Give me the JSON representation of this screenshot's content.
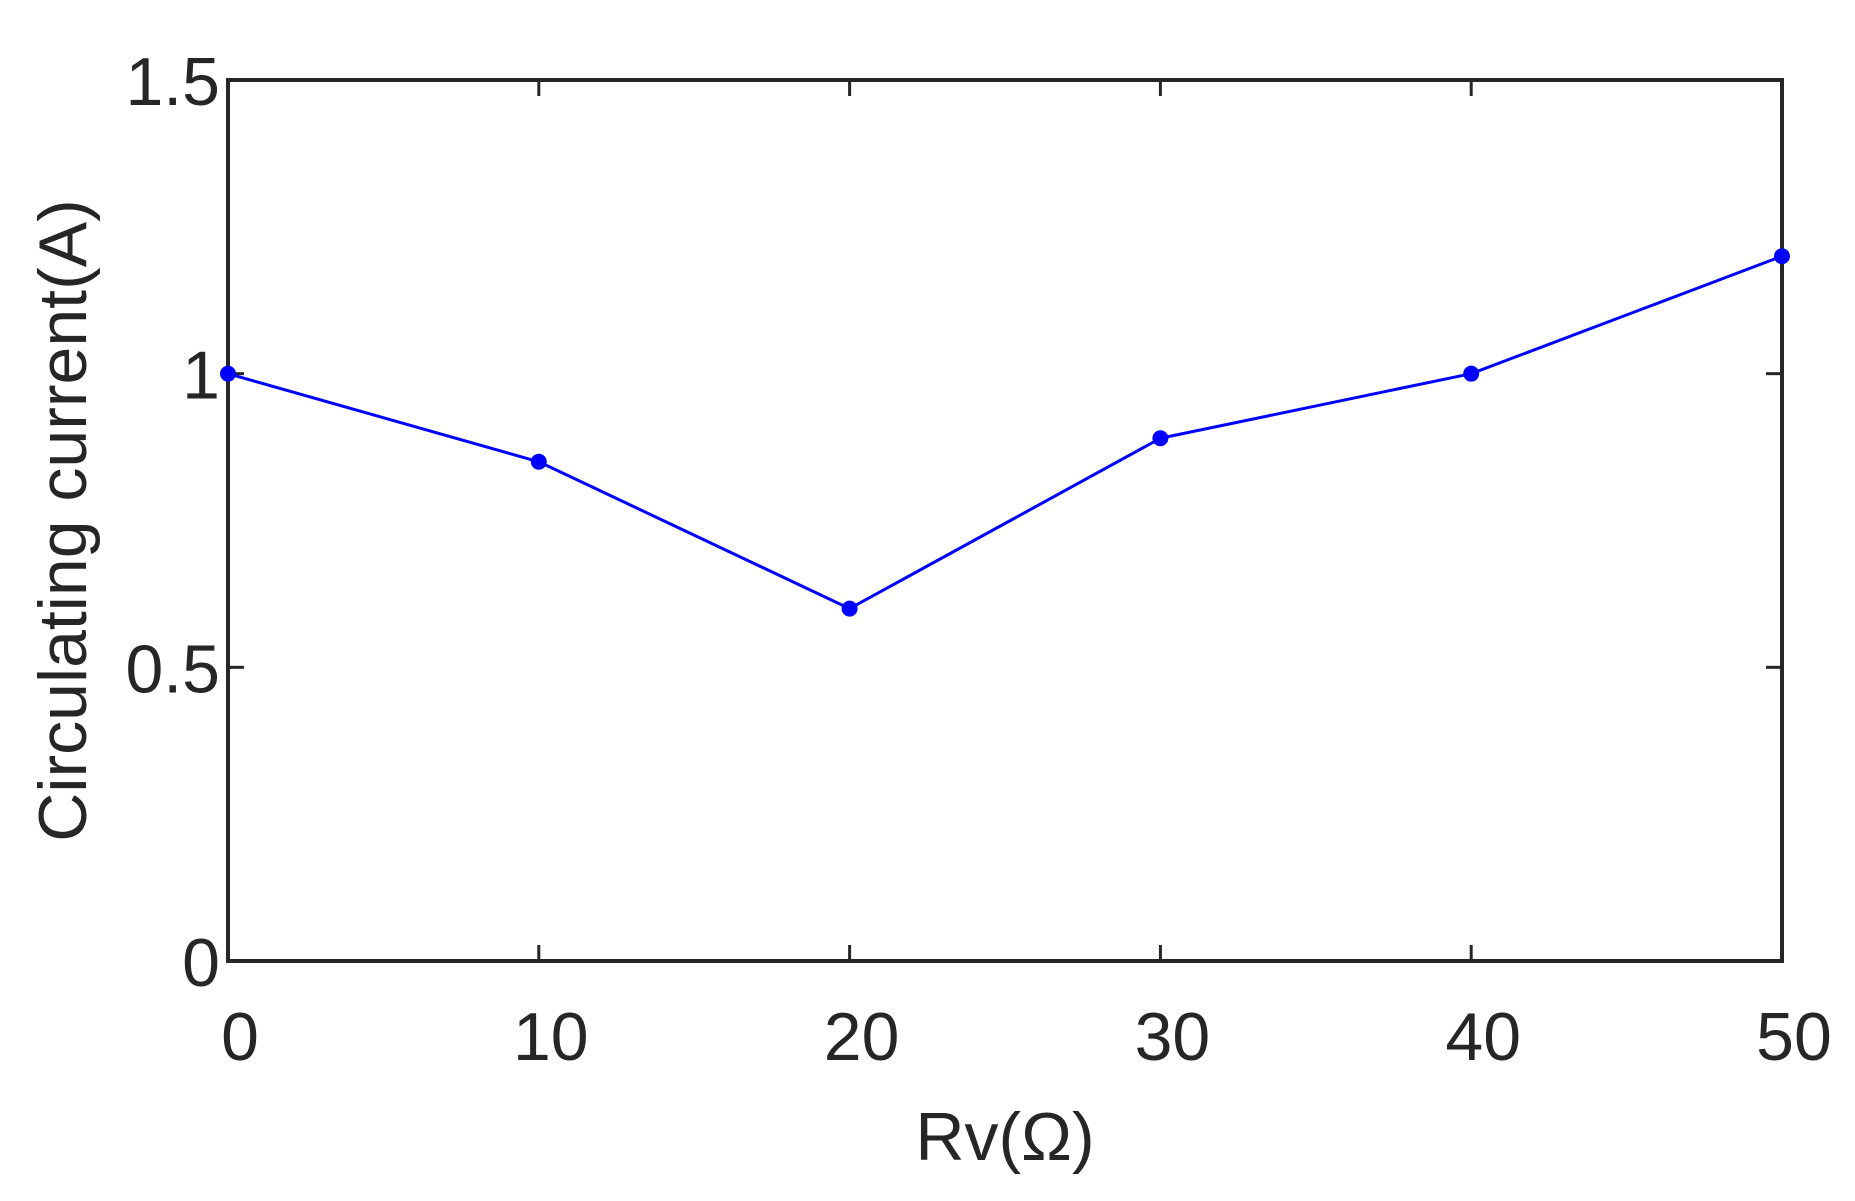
{
  "chart_data": {
    "type": "line",
    "title": "",
    "xlabel": "Rv(Ω)",
    "ylabel": "Circulating current(A)",
    "x": [
      0,
      10,
      20,
      30,
      40,
      50
    ],
    "series": [
      {
        "values": [
          1.0,
          0.85,
          0.6,
          0.89,
          1.0,
          1.2
        ],
        "color": "#0000ff",
        "marker": "dot"
      }
    ],
    "xlim": [
      0,
      50
    ],
    "ylim": [
      0,
      1.5
    ],
    "xticks": [
      0,
      10,
      20,
      30,
      40,
      50
    ],
    "xtick_labels": [
      "0",
      "10",
      "20",
      "30",
      "40",
      "50"
    ],
    "yticks": [
      0,
      0.5,
      1,
      1.5
    ],
    "ytick_labels": [
      "0",
      "0.5",
      "1",
      "1.5"
    ],
    "grid": false,
    "legend": "none",
    "box": true,
    "colors": {
      "line": "#0000ff",
      "axes": "#262626"
    }
  }
}
